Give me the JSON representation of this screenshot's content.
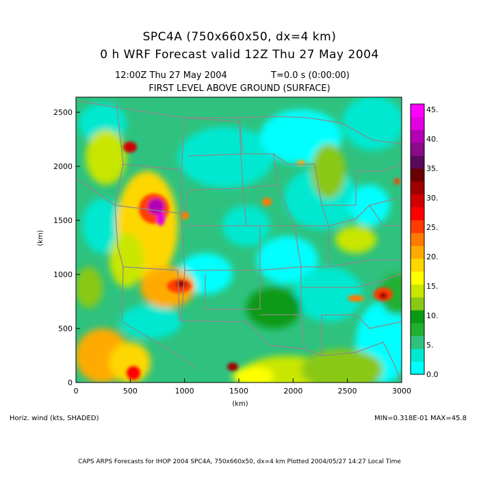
{
  "header": {
    "title_line1": "SPC4A (750x660x50, dx=4 km)",
    "title_line2": "0 h WRF Forecast valid 12Z Thu 27 May 2004",
    "time_label": "12:00Z Thu 27 May 2004",
    "elapsed_label": "T=0.0 s (0:00:00)",
    "level_label": "FIRST LEVEL ABOVE GROUND (SURFACE)"
  },
  "plot": {
    "x_axis_unit": "(km)",
    "y_axis_unit": "(km)",
    "x_ticks": [
      "0",
      "500",
      "1000",
      "1500",
      "2000",
      "2500",
      "3000"
    ],
    "y_ticks": [
      "0",
      "500",
      "1000",
      "1500",
      "2000",
      "2500"
    ],
    "x_range": [
      0,
      3000
    ],
    "y_range": [
      0,
      2640
    ]
  },
  "colorbar": {
    "labels": [
      "0.0",
      "5.",
      "10.",
      "15.",
      "20.",
      "25.",
      "30.",
      "35.",
      "40.",
      "45."
    ],
    "colors": [
      "#00ffff",
      "#00e8d0",
      "#2ec27e",
      "#20b030",
      "#0a9a14",
      "#8ac816",
      "#c8e600",
      "#ffff00",
      "#ffd700",
      "#ffaa00",
      "#ff7a00",
      "#ff3c00",
      "#ff0000",
      "#d00000",
      "#a00000",
      "#6a0000",
      "#5a0a5a",
      "#8a0a8a",
      "#b400b4",
      "#e000e0",
      "#ff00ff"
    ]
  },
  "footer": {
    "field_label": "Horiz. wind (kts, SHADED)",
    "minmax_label": "MIN=0.318E-01 MAX=45.8",
    "credit_line": "CAPS ARPS Forecasts for IHOP 2004   SPC4A, 750x660x50, dx=4 km   Plotted 2004/05/27 14:27 Local Time"
  }
}
